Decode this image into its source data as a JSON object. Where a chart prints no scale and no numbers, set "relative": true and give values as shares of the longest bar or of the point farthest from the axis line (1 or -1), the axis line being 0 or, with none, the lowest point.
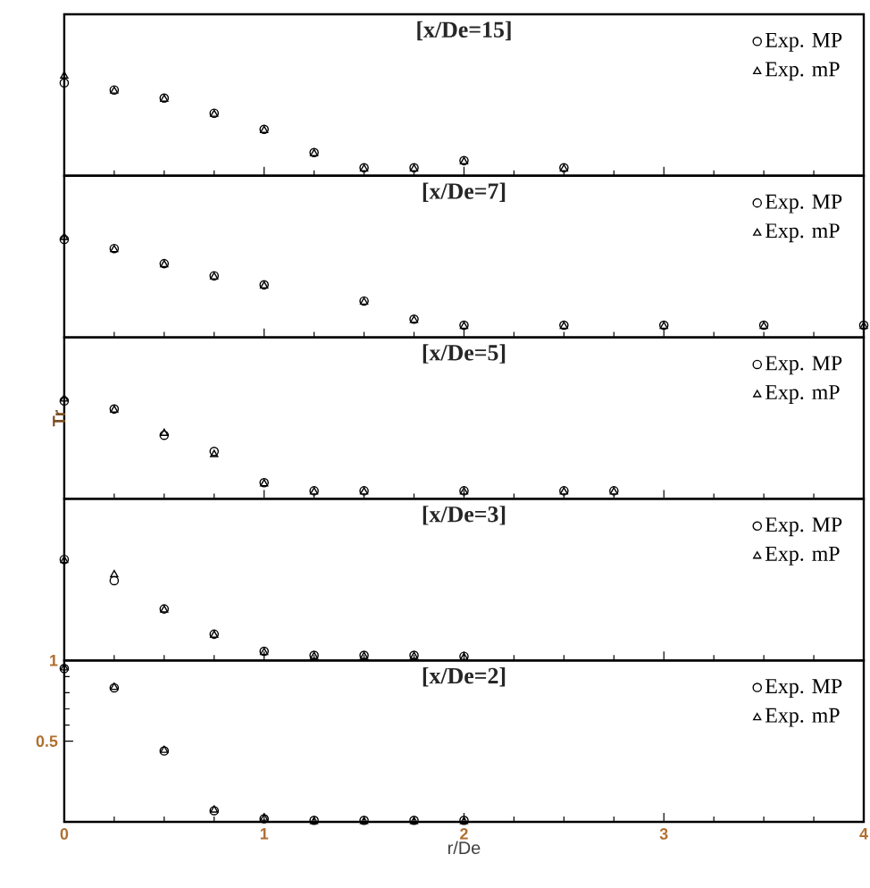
{
  "chart_data": [
    {
      "type": "scatter",
      "title": "[x/De=15]",
      "x": [
        0,
        0.25,
        0.5,
        0.75,
        1,
        1.25,
        1.5,
        1.75,
        2,
        2.5
      ],
      "xlim": [
        0,
        4
      ],
      "xticks": [
        0,
        1,
        2,
        3,
        4
      ],
      "relative": true,
      "tick_labels": false,
      "legend": "top right",
      "series": [
        {
          "name": "Exp. MP",
          "color": "#000000",
          "marker": "circle",
          "values": [
            0.92,
            0.85,
            0.77,
            0.62,
            0.46,
            0.23,
            0.08,
            0.08,
            0.15,
            0.08
          ]
        },
        {
          "name": "Exp. mP",
          "color": "#000000",
          "marker": "triangle",
          "values": [
            1,
            0.85,
            0.77,
            0.62,
            0.46,
            0.23,
            0.08,
            0.08,
            0.15,
            0.08
          ]
        }
      ]
    },
    {
      "type": "scatter",
      "title": "[x/De=7]",
      "x": [
        0,
        0.25,
        0.5,
        0.75,
        1,
        1.5,
        1.75,
        2,
        2.5,
        3,
        3.5,
        4
      ],
      "xlim": [
        0,
        4
      ],
      "xticks": [
        0,
        1,
        2,
        3,
        4
      ],
      "relative": true,
      "tick_labels": false,
      "legend": "top right",
      "series": [
        {
          "name": "Exp. MP",
          "color": "#000000",
          "marker": "circle",
          "values": [
            0.97,
            0.88,
            0.73,
            0.61,
            0.52,
            0.36,
            0.18,
            0.12,
            0.12,
            0.12,
            0.12,
            0.12
          ]
        },
        {
          "name": "Exp. mP",
          "color": "#000000",
          "marker": "triangle",
          "values": [
            1,
            0.88,
            0.73,
            0.61,
            0.52,
            0.36,
            0.18,
            0.12,
            0.12,
            0.12,
            0.12,
            0.12
          ]
        }
      ]
    },
    {
      "type": "scatter",
      "title": "[x/De=5]",
      "ylabel": "Tr",
      "x": [
        0,
        0.25,
        0.5,
        0.75,
        1,
        1.25,
        1.5,
        2,
        2.5,
        2.75
      ],
      "xlim": [
        0,
        4
      ],
      "xticks": [
        0,
        1,
        2,
        3,
        4
      ],
      "relative": true,
      "tick_labels": false,
      "legend": "top right",
      "series": [
        {
          "name": "Exp. MP",
          "color": "#000000",
          "marker": "circle",
          "values": [
            0.97,
            0.89,
            0.63,
            0.47,
            0.16,
            0.08,
            0.08,
            0.08,
            0.08,
            0.08
          ]
        },
        {
          "name": "Exp. mP",
          "color": "#000000",
          "marker": "triangle",
          "values": [
            1,
            0.89,
            0.66,
            0.45,
            0.16,
            0.08,
            0.08,
            0.08,
            0.08,
            0.08
          ]
        }
      ]
    },
    {
      "type": "scatter",
      "title": "[x/De=3]",
      "x": [
        0,
        0.25,
        0.5,
        0.75,
        1,
        1.25,
        1.5,
        1.75,
        2
      ],
      "xlim": [
        0,
        4
      ],
      "xticks": [
        0,
        1,
        2,
        3,
        4
      ],
      "relative": true,
      "tick_labels": false,
      "legend": "top right",
      "series": [
        {
          "name": "Exp. MP",
          "color": "#000000",
          "marker": "circle",
          "values": [
            1,
            0.79,
            0.51,
            0.26,
            0.09,
            0.05,
            0.05,
            0.05,
            0.04
          ]
        },
        {
          "name": "Exp. mP",
          "color": "#000000",
          "marker": "triangle",
          "values": [
            1,
            0.86,
            0.51,
            0.26,
            0.09,
            0.05,
            0.05,
            0.05,
            0.04
          ]
        }
      ]
    },
    {
      "type": "scatter",
      "title": "[x/De=2]",
      "xlabel": "r/De",
      "x": [
        0,
        0.25,
        0.5,
        0.75,
        1,
        1.25,
        1.5,
        1.75,
        2
      ],
      "xlim": [
        0,
        4
      ],
      "xticks": [
        0,
        1,
        2,
        3,
        4
      ],
      "ylim": [
        0,
        1
      ],
      "yticks": [
        0.5,
        1
      ],
      "legend": "top right",
      "series": [
        {
          "name": "Exp. MP",
          "color": "#000000",
          "marker": "circle",
          "values": [
            0.95,
            0.83,
            0.44,
            0.07,
            0.02,
            0.01,
            0.01,
            0.01,
            0.01
          ]
        },
        {
          "name": "Exp. mP",
          "color": "#000000",
          "marker": "triangle",
          "values": [
            0.96,
            0.84,
            0.45,
            0.08,
            0.03,
            0.01,
            0.01,
            0.01,
            0.01
          ]
        }
      ]
    }
  ]
}
